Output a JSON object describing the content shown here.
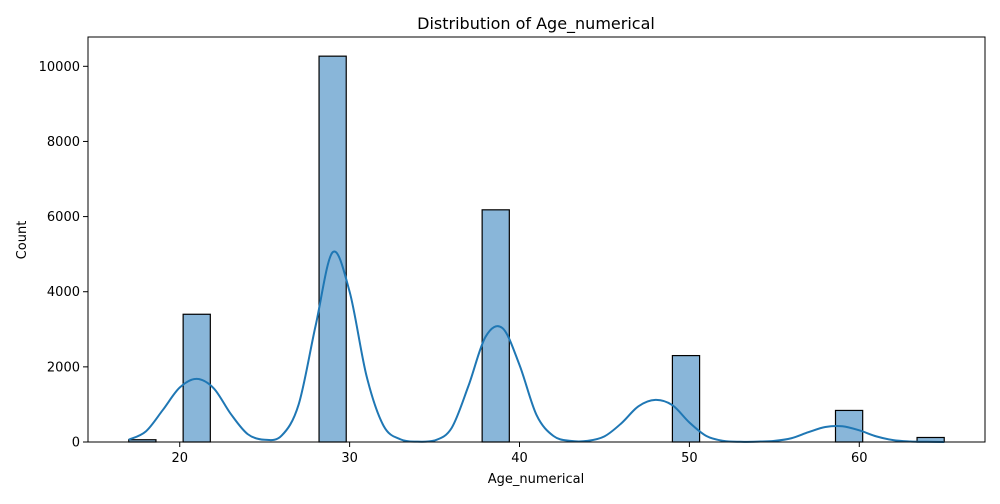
{
  "chart_data": {
    "type": "bar",
    "subtype": "histogram-with-kde",
    "title": "Distribution of Age_numerical",
    "xlabel": "Age_numerical",
    "ylabel": "Count",
    "xlim": [
      14.6,
      67.4
    ],
    "ylim": [
      0,
      10780
    ],
    "xticks": [
      20,
      30,
      40,
      50,
      60
    ],
    "yticks": [
      0,
      2000,
      4000,
      6000,
      8000,
      10000
    ],
    "grid": false,
    "legend": "none",
    "bars": [
      {
        "x0": 17.0,
        "x1": 18.6,
        "value": 60
      },
      {
        "x0": 20.2,
        "x1": 21.8,
        "value": 3400
      },
      {
        "x0": 28.2,
        "x1": 29.8,
        "value": 10270
      },
      {
        "x0": 37.8,
        "x1": 39.4,
        "value": 6180
      },
      {
        "x0": 49.0,
        "x1": 50.6,
        "value": 2300
      },
      {
        "x0": 58.6,
        "x1": 60.2,
        "value": 840
      },
      {
        "x0": 63.4,
        "x1": 65.0,
        "value": 120
      }
    ],
    "kde": {
      "x": [
        17,
        18,
        19,
        20,
        21,
        22,
        23,
        24,
        25,
        26,
        27,
        28,
        29,
        30,
        31,
        32,
        33,
        34,
        35,
        36,
        37,
        38,
        39,
        40,
        41,
        42,
        43,
        44,
        45,
        46,
        47,
        48,
        49,
        50,
        51,
        52,
        53,
        54,
        55,
        56,
        57,
        58,
        59,
        60,
        61,
        62,
        63,
        64,
        65
      ],
      "y": [
        60,
        280,
        850,
        1450,
        1680,
        1430,
        750,
        210,
        60,
        170,
        1000,
        3100,
        5050,
        4000,
        1750,
        430,
        70,
        10,
        40,
        370,
        1500,
        2800,
        3030,
        2050,
        720,
        160,
        30,
        30,
        150,
        500,
        950,
        1120,
        980,
        520,
        160,
        30,
        5,
        10,
        30,
        100,
        260,
        400,
        420,
        310,
        150,
        50,
        15,
        5,
        0
      ]
    },
    "colors": {
      "bar_fill": "#89b6d9",
      "bar_edge": "#000000",
      "kde_line": "#1f77b4"
    }
  }
}
